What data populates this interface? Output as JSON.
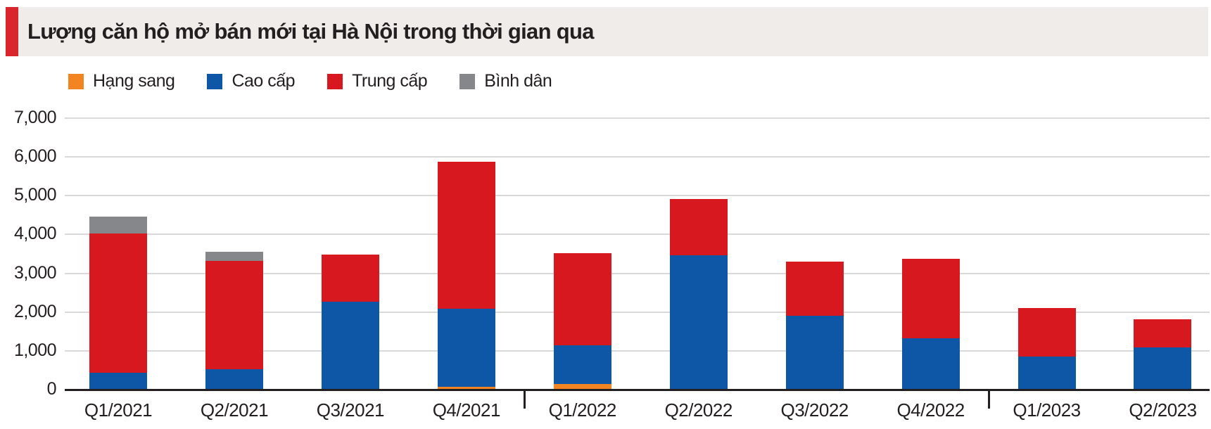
{
  "header": {
    "title": "Lượng căn hộ mở bán mới tại Hà Nội trong thời gian qua"
  },
  "colors": {
    "accent_red": "#d8262c",
    "banner_background": "#efece9",
    "axis_black": "#231f20",
    "gridline_gray": "#d9d9d9",
    "series_luxury_orange": "#f28522",
    "series_highend_blue": "#0e57a6",
    "series_midend_red": "#d7191f",
    "series_affordable_gray": "#85878a"
  },
  "chart_data": {
    "type": "bar",
    "stacked": true,
    "title": "Lượng căn hộ mở bán mới tại Hà Nội trong thời gian qua",
    "xlabel": "",
    "ylabel": "",
    "categories": [
      "Q1/2021",
      "Q2/2021",
      "Q3/2021",
      "Q4/2021",
      "Q1/2022",
      "Q2/2022",
      "Q3/2022",
      "Q4/2022",
      "Q1/2023",
      "Q2/2023"
    ],
    "series": [
      {
        "name": "Hạng sang",
        "color": "#f28522",
        "values": [
          0,
          0,
          0,
          80,
          140,
          0,
          0,
          0,
          0,
          0
        ]
      },
      {
        "name": "Cao cấp",
        "color": "#0e57a6",
        "values": [
          430,
          520,
          2270,
          2010,
          1000,
          3460,
          1910,
          1320,
          860,
          1080
        ]
      },
      {
        "name": "Trung cấp",
        "color": "#d7191f",
        "values": [
          3590,
          2800,
          1210,
          3780,
          2370,
          1460,
          1390,
          2060,
          1250,
          740
        ]
      },
      {
        "name": "Bình dân",
        "color": "#85878a",
        "values": [
          440,
          240,
          0,
          0,
          0,
          0,
          0,
          0,
          0,
          0
        ]
      }
    ],
    "totals": [
      4460,
      3560,
      3480,
      5870,
      3510,
      4920,
      3300,
      3380,
      2110,
      1820
    ],
    "ylim": [
      0,
      7000
    ],
    "yticks": [
      0,
      1000,
      2000,
      3000,
      4000,
      5000,
      6000,
      7000
    ],
    "ytick_labels": [
      "0",
      "1,000",
      "2,000",
      "3,000",
      "4,000",
      "5,000",
      "6,000",
      "7,000"
    ],
    "grid": "horizontal",
    "legend_position": "top-left",
    "year_separators_after": [
      "Q4/2021",
      "Q4/2022"
    ]
  }
}
